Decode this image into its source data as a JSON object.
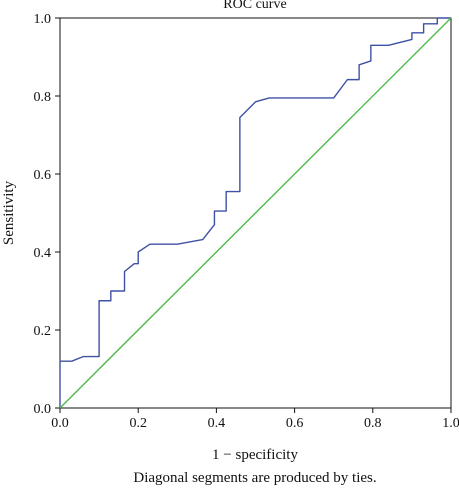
{
  "chart_data": {
    "type": "line",
    "title": "ROC curve",
    "xlabel": "1 − specificity",
    "ylabel": "Sensitivity",
    "footnote": "Diagonal segments are produced by ties.",
    "xlim": [
      0.0,
      1.0
    ],
    "ylim": [
      0.0,
      1.0
    ],
    "x_ticks": [
      0.0,
      0.2,
      0.4,
      0.6,
      0.8,
      1.0
    ],
    "y_ticks": [
      0.0,
      0.2,
      0.4,
      0.6,
      0.8,
      1.0
    ],
    "x_tick_labels": [
      "0.0",
      "0.2",
      "0.4",
      "0.6",
      "0.8",
      "1.0"
    ],
    "y_tick_labels": [
      "0.0",
      "0.2",
      "0.4",
      "0.6",
      "0.8",
      "1.0"
    ],
    "grid": false,
    "legend": "none",
    "series": [
      {
        "color": "#3F51A5",
        "points": [
          [
            0.0,
            0.0
          ],
          [
            0.0,
            0.12
          ],
          [
            0.03,
            0.12
          ],
          [
            0.06,
            0.132
          ],
          [
            0.1,
            0.132
          ],
          [
            0.1,
            0.275
          ],
          [
            0.13,
            0.275
          ],
          [
            0.13,
            0.3
          ],
          [
            0.165,
            0.3
          ],
          [
            0.165,
            0.35
          ],
          [
            0.19,
            0.37
          ],
          [
            0.2,
            0.37
          ],
          [
            0.2,
            0.4
          ],
          [
            0.23,
            0.42
          ],
          [
            0.3,
            0.42
          ],
          [
            0.365,
            0.432
          ],
          [
            0.395,
            0.47
          ],
          [
            0.395,
            0.505
          ],
          [
            0.425,
            0.505
          ],
          [
            0.425,
            0.555
          ],
          [
            0.46,
            0.555
          ],
          [
            0.46,
            0.745
          ],
          [
            0.5,
            0.785
          ],
          [
            0.535,
            0.795
          ],
          [
            0.7,
            0.795
          ],
          [
            0.735,
            0.842
          ],
          [
            0.765,
            0.842
          ],
          [
            0.765,
            0.88
          ],
          [
            0.795,
            0.89
          ],
          [
            0.795,
            0.93
          ],
          [
            0.84,
            0.93
          ],
          [
            0.9,
            0.945
          ],
          [
            0.9,
            0.962
          ],
          [
            0.93,
            0.962
          ],
          [
            0.93,
            0.985
          ],
          [
            0.965,
            0.985
          ],
          [
            0.965,
            1.0
          ],
          [
            1.0,
            1.0
          ]
        ]
      },
      {
        "color": "#4CBB47",
        "points": [
          [
            0.0,
            0.0
          ],
          [
            1.0,
            1.0
          ]
        ]
      }
    ]
  }
}
